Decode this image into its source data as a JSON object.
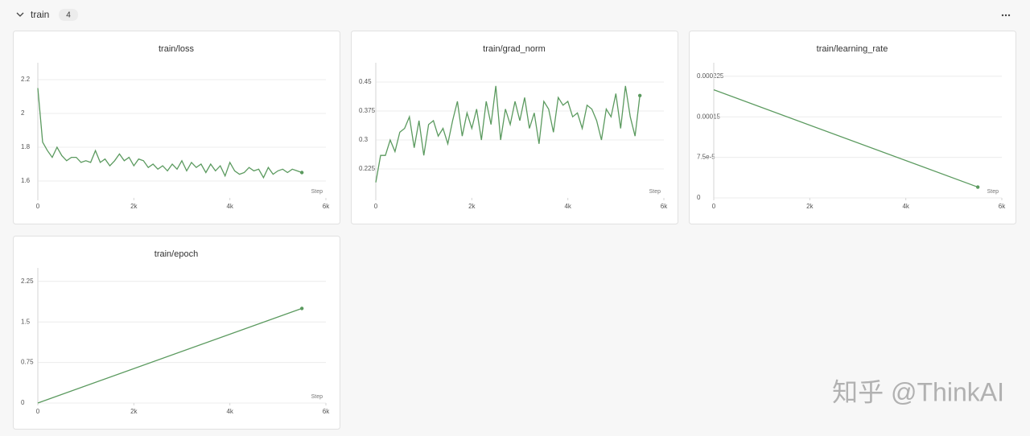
{
  "section": {
    "title": "train",
    "count": 4
  },
  "watermark": "知乎 @ThinkAI",
  "chart_data": [
    {
      "type": "line",
      "title": "train/loss",
      "x_label": "Step",
      "x": [
        0,
        100,
        200,
        300,
        400,
        500,
        600,
        700,
        800,
        900,
        1000,
        1100,
        1200,
        1300,
        1400,
        1500,
        1600,
        1700,
        1800,
        1900,
        2000,
        2100,
        2200,
        2300,
        2400,
        2500,
        2600,
        2700,
        2800,
        2900,
        3000,
        3100,
        3200,
        3300,
        3400,
        3500,
        3600,
        3700,
        3800,
        3900,
        4000,
        4100,
        4200,
        4300,
        4400,
        4500,
        4600,
        4700,
        4800,
        4900,
        5000,
        5100,
        5200,
        5300,
        5400,
        5500
      ],
      "series": [
        {
          "name": "train/loss",
          "color": "#5b9a5f",
          "values": [
            2.15,
            1.83,
            1.78,
            1.74,
            1.8,
            1.75,
            1.72,
            1.74,
            1.74,
            1.71,
            1.72,
            1.71,
            1.78,
            1.71,
            1.73,
            1.69,
            1.72,
            1.76,
            1.72,
            1.74,
            1.69,
            1.73,
            1.72,
            1.68,
            1.7,
            1.67,
            1.69,
            1.66,
            1.7,
            1.67,
            1.72,
            1.66,
            1.71,
            1.68,
            1.7,
            1.65,
            1.7,
            1.66,
            1.69,
            1.63,
            1.71,
            1.66,
            1.64,
            1.65,
            1.68,
            1.66,
            1.67,
            1.62,
            1.68,
            1.64,
            1.66,
            1.67,
            1.65,
            1.67,
            1.66,
            1.65
          ]
        }
      ],
      "xlim": [
        0,
        6000
      ],
      "xticks": [
        0,
        {
          "value": 2000,
          "label": "2k"
        },
        {
          "value": 4000,
          "label": "4k"
        },
        {
          "value": 6000,
          "label": "6k"
        }
      ],
      "ylim": [
        1.5,
        2.3
      ],
      "yticks": [
        1.6,
        1.8,
        2,
        2.2
      ],
      "grid": true
    },
    {
      "type": "line",
      "title": "train/grad_norm",
      "x_label": "Step",
      "x": [
        0,
        100,
        200,
        300,
        400,
        500,
        600,
        700,
        800,
        900,
        1000,
        1100,
        1200,
        1300,
        1400,
        1500,
        1600,
        1700,
        1800,
        1900,
        2000,
        2100,
        2200,
        2300,
        2400,
        2500,
        2600,
        2700,
        2800,
        2900,
        3000,
        3100,
        3200,
        3300,
        3400,
        3500,
        3600,
        3700,
        3800,
        3900,
        4000,
        4100,
        4200,
        4300,
        4400,
        4500,
        4600,
        4700,
        4800,
        4900,
        5000,
        5100,
        5200,
        5300,
        5400,
        5500
      ],
      "series": [
        {
          "name": "train/grad_norm",
          "color": "#5b9a5f",
          "values": [
            0.19,
            0.26,
            0.26,
            0.3,
            0.27,
            0.32,
            0.33,
            0.36,
            0.28,
            0.35,
            0.26,
            0.34,
            0.35,
            0.31,
            0.33,
            0.29,
            0.35,
            0.4,
            0.31,
            0.37,
            0.33,
            0.38,
            0.3,
            0.4,
            0.34,
            0.44,
            0.3,
            0.38,
            0.34,
            0.4,
            0.35,
            0.41,
            0.33,
            0.37,
            0.29,
            0.4,
            0.38,
            0.32,
            0.41,
            0.39,
            0.4,
            0.36,
            0.37,
            0.33,
            0.39,
            0.38,
            0.35,
            0.3,
            0.38,
            0.36,
            0.42,
            0.33,
            0.44,
            0.36,
            0.31,
            0.415
          ]
        }
      ],
      "xlim": [
        0,
        6000
      ],
      "xticks": [
        0,
        {
          "value": 2000,
          "label": "2k"
        },
        {
          "value": 4000,
          "label": "4k"
        },
        {
          "value": 6000,
          "label": "6k"
        }
      ],
      "ylim": [
        0.15,
        0.5
      ],
      "yticks": [
        0.225,
        0.3,
        0.375,
        0.45
      ],
      "grid": true
    },
    {
      "type": "line",
      "title": "train/learning_rate",
      "x_label": "Step",
      "x": [
        0,
        5500
      ],
      "series": [
        {
          "name": "train/learning_rate",
          "color": "#5b9a5f",
          "values": [
            0.0002,
            2e-05
          ]
        }
      ],
      "xlim": [
        0,
        6000
      ],
      "xticks": [
        0,
        {
          "value": 2000,
          "label": "2k"
        },
        {
          "value": 4000,
          "label": "4k"
        },
        {
          "value": 6000,
          "label": "6k"
        }
      ],
      "ylim": [
        0,
        0.00025
      ],
      "yticks": [
        0,
        {
          "value": 7.5e-05,
          "label": "7.5e-5"
        },
        0.00015,
        0.000225
      ],
      "grid": true
    },
    {
      "type": "line",
      "title": "train/epoch",
      "x_label": "Step",
      "x": [
        0,
        5500
      ],
      "series": [
        {
          "name": "train/epoch",
          "color": "#5b9a5f",
          "values": [
            0,
            1.75
          ]
        }
      ],
      "xlim": [
        0,
        6000
      ],
      "xticks": [
        0,
        {
          "value": 2000,
          "label": "2k"
        },
        {
          "value": 4000,
          "label": "4k"
        },
        {
          "value": 6000,
          "label": "6k"
        }
      ],
      "ylim": [
        0,
        2.5
      ],
      "yticks": [
        0,
        0.75,
        1.5,
        2.25
      ],
      "grid": true
    }
  ]
}
